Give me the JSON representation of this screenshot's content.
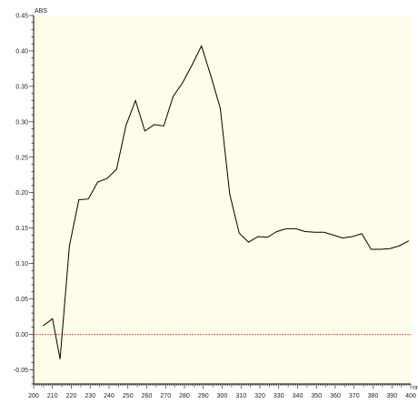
{
  "chart_data": {
    "type": "line",
    "title": "",
    "xlabel": "nm",
    "ylabel": "ABS",
    "xlim": [
      200,
      400
    ],
    "ylim": [
      -0.07,
      0.45
    ],
    "x_ticks": [
      200,
      210,
      220,
      230,
      240,
      250,
      260,
      270,
      280,
      290,
      300,
      310,
      320,
      330,
      340,
      350,
      360,
      370,
      380,
      390,
      400
    ],
    "y_ticks": [
      -0.05,
      0.0,
      0.05,
      0.1,
      0.15,
      0.2,
      0.25,
      0.3,
      0.35,
      0.4,
      0.45
    ],
    "y_tick_labels": [
      "-0.05",
      "0.00",
      "0.05",
      "0.10",
      "0.15",
      "0.20",
      "0.25",
      "0.30",
      "0.35",
      "0.40",
      "0.45"
    ],
    "grid": false,
    "baseline": {
      "y": 0,
      "color": "#e06666"
    },
    "colors": {
      "background": "#fffde9",
      "line": "#000000",
      "axis": "#000000"
    },
    "series": [
      {
        "values": [
          [
            205,
            0.012
          ],
          [
            210,
            0.022
          ],
          [
            214,
            -0.035
          ],
          [
            219,
            0.125
          ],
          [
            224,
            0.19
          ],
          [
            229,
            0.191
          ],
          [
            234,
            0.215
          ],
          [
            239,
            0.22
          ],
          [
            244,
            0.233
          ],
          [
            249,
            0.295
          ],
          [
            254,
            0.33
          ],
          [
            259,
            0.287
          ],
          [
            264,
            0.296
          ],
          [
            269,
            0.294
          ],
          [
            274,
            0.336
          ],
          [
            279,
            0.355
          ],
          [
            284,
            0.38
          ],
          [
            289,
            0.407
          ],
          [
            294,
            0.365
          ],
          [
            299,
            0.319
          ],
          [
            304,
            0.198
          ],
          [
            309,
            0.143
          ],
          [
            314,
            0.13
          ],
          [
            319,
            0.138
          ],
          [
            324,
            0.137
          ],
          [
            329,
            0.145
          ],
          [
            334,
            0.149
          ],
          [
            339,
            0.149
          ],
          [
            344,
            0.145
          ],
          [
            349,
            0.144
          ],
          [
            354,
            0.144
          ],
          [
            359,
            0.14
          ],
          [
            364,
            0.136
          ],
          [
            369,
            0.138
          ],
          [
            374,
            0.142
          ],
          [
            379,
            0.12
          ],
          [
            384,
            0.12
          ],
          [
            389,
            0.121
          ],
          [
            394,
            0.125
          ],
          [
            399,
            0.132
          ]
        ]
      }
    ]
  }
}
